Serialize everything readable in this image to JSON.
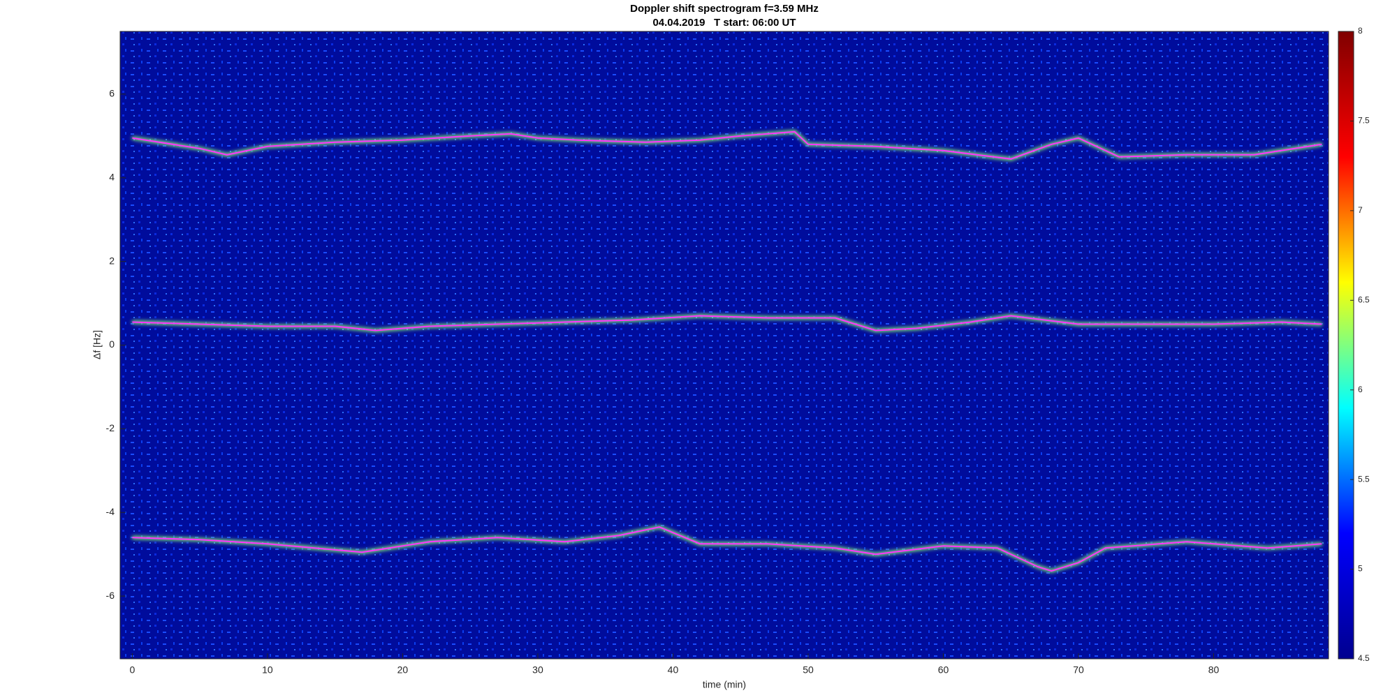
{
  "chart_data": {
    "type": "spectrogram",
    "title": "Doppler shift spectrogram f=3.59 MHz",
    "subtitle": "04.04.2019   T start: 06:00 UT",
    "x_label": "time (min)",
    "y_label": "Δf [Hz]",
    "xlim": [
      -0.9,
      88.5
    ],
    "xticks": [
      0,
      10,
      20,
      30,
      40,
      50,
      60,
      70,
      80
    ],
    "ylim": [
      -7.5,
      7.5
    ],
    "yticks": [
      -6,
      -4,
      -2,
      0,
      2,
      4,
      6
    ],
    "colormap": "jet",
    "clim": [
      4.5,
      8
    ],
    "cticks": [
      4.5,
      5,
      5.5,
      6,
      6.5,
      7,
      7.5,
      8
    ],
    "series": [
      {
        "color": "#ff33ff",
        "x": [
          0,
          5,
          7,
          10,
          15,
          20,
          25,
          28,
          30,
          33,
          38,
          42,
          45,
          49,
          50,
          55,
          60,
          65,
          68,
          70,
          73,
          78,
          83,
          88
        ],
        "values": [
          4.95,
          4.7,
          4.55,
          4.75,
          4.85,
          4.9,
          5.0,
          5.05,
          4.95,
          4.9,
          4.85,
          4.9,
          5.0,
          5.1,
          4.8,
          4.75,
          4.65,
          4.45,
          4.8,
          4.95,
          4.5,
          4.55,
          4.55,
          4.8
        ]
      },
      {
        "color": "#ff33ff",
        "x": [
          0,
          5,
          10,
          15,
          18,
          22,
          27,
          32,
          37,
          42,
          47,
          52,
          55,
          58,
          62,
          65,
          70,
          75,
          80,
          85,
          88
        ],
        "values": [
          0.55,
          0.5,
          0.45,
          0.45,
          0.35,
          0.45,
          0.5,
          0.55,
          0.6,
          0.7,
          0.65,
          0.65,
          0.35,
          0.4,
          0.55,
          0.7,
          0.5,
          0.5,
          0.5,
          0.55,
          0.5
        ]
      },
      {
        "color": "#ff33ff",
        "x": [
          0,
          5,
          10,
          17,
          22,
          27,
          32,
          36,
          39,
          42,
          47,
          52,
          55,
          60,
          64,
          67,
          68,
          70,
          72,
          78,
          84,
          88
        ],
        "values": [
          -4.6,
          -4.65,
          -4.75,
          -4.95,
          -4.7,
          -4.6,
          -4.7,
          -4.55,
          -4.35,
          -4.75,
          -4.75,
          -4.85,
          -5.0,
          -4.8,
          -4.85,
          -5.3,
          -5.4,
          -5.2,
          -4.85,
          -4.7,
          -4.85,
          -4.75
        ]
      }
    ]
  }
}
